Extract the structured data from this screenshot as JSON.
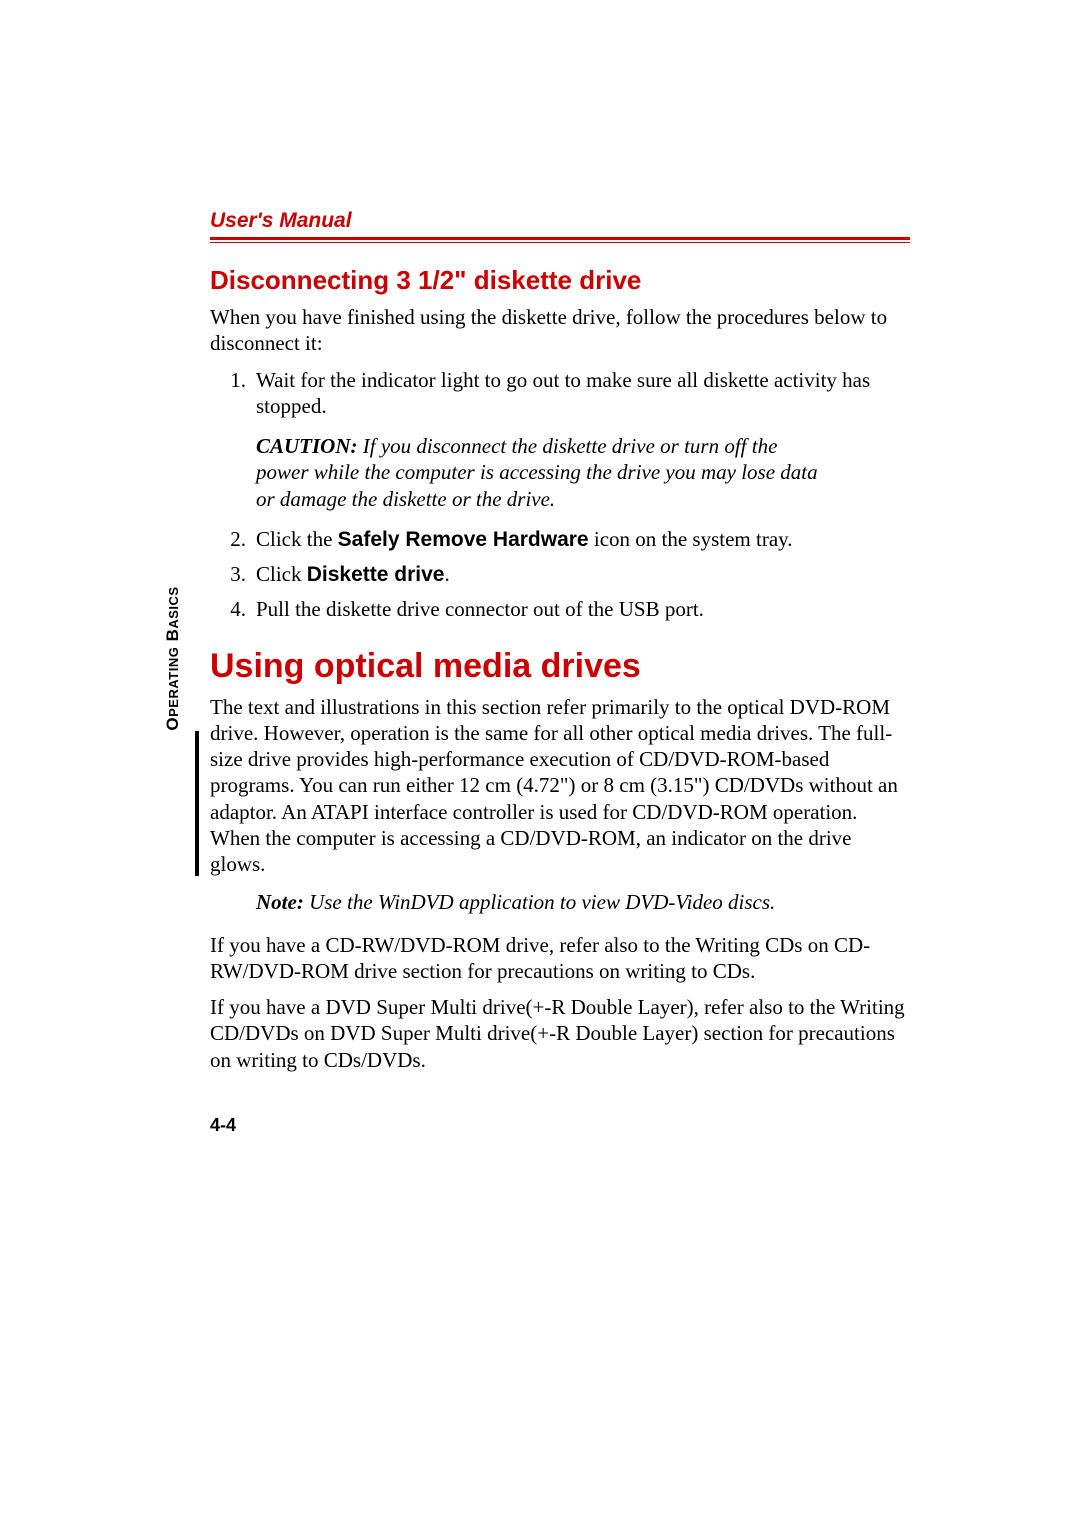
{
  "colors": {
    "accent": "#cc0000",
    "text": "#000000",
    "background": "#ffffff"
  },
  "typography": {
    "body_family": "Times New Roman",
    "heading_family": "Arial",
    "body_size_pt": 16,
    "h1_size_pt": 26,
    "h2_size_pt": 20,
    "header_size_pt": 16
  },
  "header": {
    "title": "User's Manual"
  },
  "section1": {
    "heading": "Disconnecting 3 1/2\" diskette drive",
    "intro": "When you have finished using the diskette drive, follow the procedures below to disconnect it:",
    "items": [
      {
        "num": "1.",
        "text": "Wait for the indicator light to go out to make sure all diskette activity has stopped."
      },
      {
        "num": "2.",
        "pre": "Click the ",
        "bold": "Safely Remove Hardware",
        "post": " icon on the system tray."
      },
      {
        "num": "3.",
        "pre": "Click ",
        "bold": "Diskette drive",
        "post": "."
      },
      {
        "num": "4.",
        "text": "Pull the diskette drive connector out of the USB port."
      }
    ],
    "caution": {
      "label": "CAUTION:",
      "text": " If you disconnect the diskette drive or turn off the power while the computer is accessing the drive you may lose data or damage the diskette or the drive."
    }
  },
  "section2": {
    "heading": "Using optical media drives",
    "para1": "The text and illustrations in this section refer primarily to the optical DVD-ROM drive. However, operation is the same for all other optical media drives. The full-size drive provides high-performance execution of CD/DVD-ROM-based programs. You can run either 12 cm (4.72\") or 8 cm (3.15\") CD/DVDs without an adaptor. An ATAPI interface controller is used for CD/DVD-ROM operation. When the computer is accessing a CD/DVD-ROM, an indicator on the drive glows.",
    "note": {
      "label": "Note:",
      "text": " Use the WinDVD application to view DVD-Video discs."
    },
    "para2": "If you have a CD-RW/DVD-ROM drive, refer also to the Writing CDs on CD-RW/DVD-ROM drive section for precautions on writing to CDs.",
    "para3": "If you have a DVD Super Multi drive(+-R Double Layer), refer also to the Writing CD/DVDs on DVD Super Multi drive(+-R Double Layer) section for precautions on writing to CDs/DVDs."
  },
  "side": {
    "label_word1_cap": "O",
    "label_word1_rest": "PERATING",
    "label_word2_cap": "B",
    "label_word2_rest": "ASICS"
  },
  "footer": {
    "page_number": "4-4"
  }
}
